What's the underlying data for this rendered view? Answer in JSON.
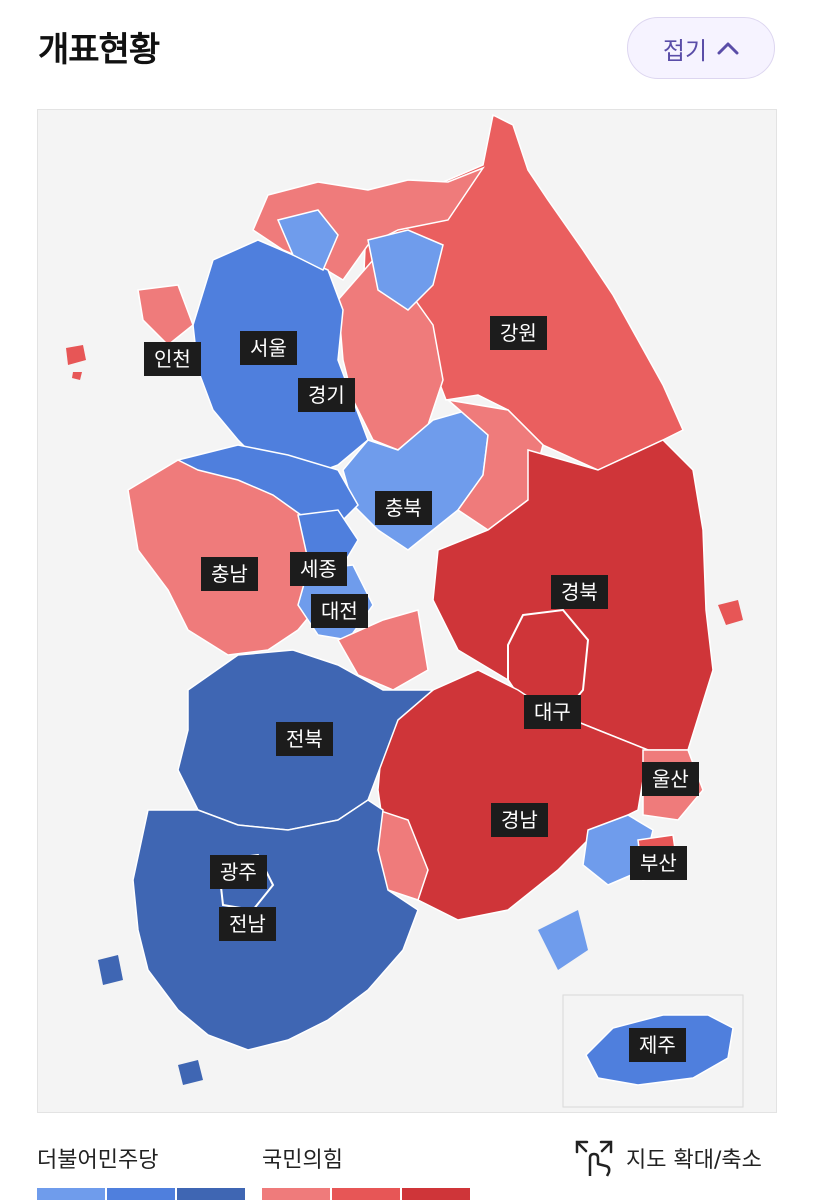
{
  "header": {
    "title": "개표현황"
  },
  "collapse_button": {
    "label": "접기"
  },
  "map": {
    "labels": {
      "incheon": "인천",
      "seoul": "서울",
      "gyeonggi": "경기",
      "gangwon": "강원",
      "chungbuk": "충북",
      "chungnam": "충남",
      "sejong": "세종",
      "daejeon": "대전",
      "gyeongbuk": "경북",
      "daegu": "대구",
      "jeonbuk": "전북",
      "ulsan": "울산",
      "gyeongnam": "경남",
      "busan": "부산",
      "gwangju": "광주",
      "jeonnam": "전남",
      "jeju": "제주"
    },
    "colors": {
      "background": "#f4f4f4",
      "dem_light": "#6f9cec",
      "dem_mid": "#4f7fdd",
      "dem_dark": "#3f66b3",
      "ppp_light": "#ef7b7b",
      "ppp_mid": "#e75656",
      "ppp_dark": "#cf3539"
    }
  },
  "legend": {
    "dem": {
      "label": "더불어민주당",
      "colors": [
        "#6f9cec",
        "#4f7fdd",
        "#3f66b3"
      ]
    },
    "ppp": {
      "label": "국민의힘",
      "colors": [
        "#ef7b7b",
        "#e75656",
        "#cf3539"
      ]
    }
  },
  "zoom_toggle": {
    "label": "지도 확대/축소",
    "icon": "pinch-zoom-icon"
  }
}
